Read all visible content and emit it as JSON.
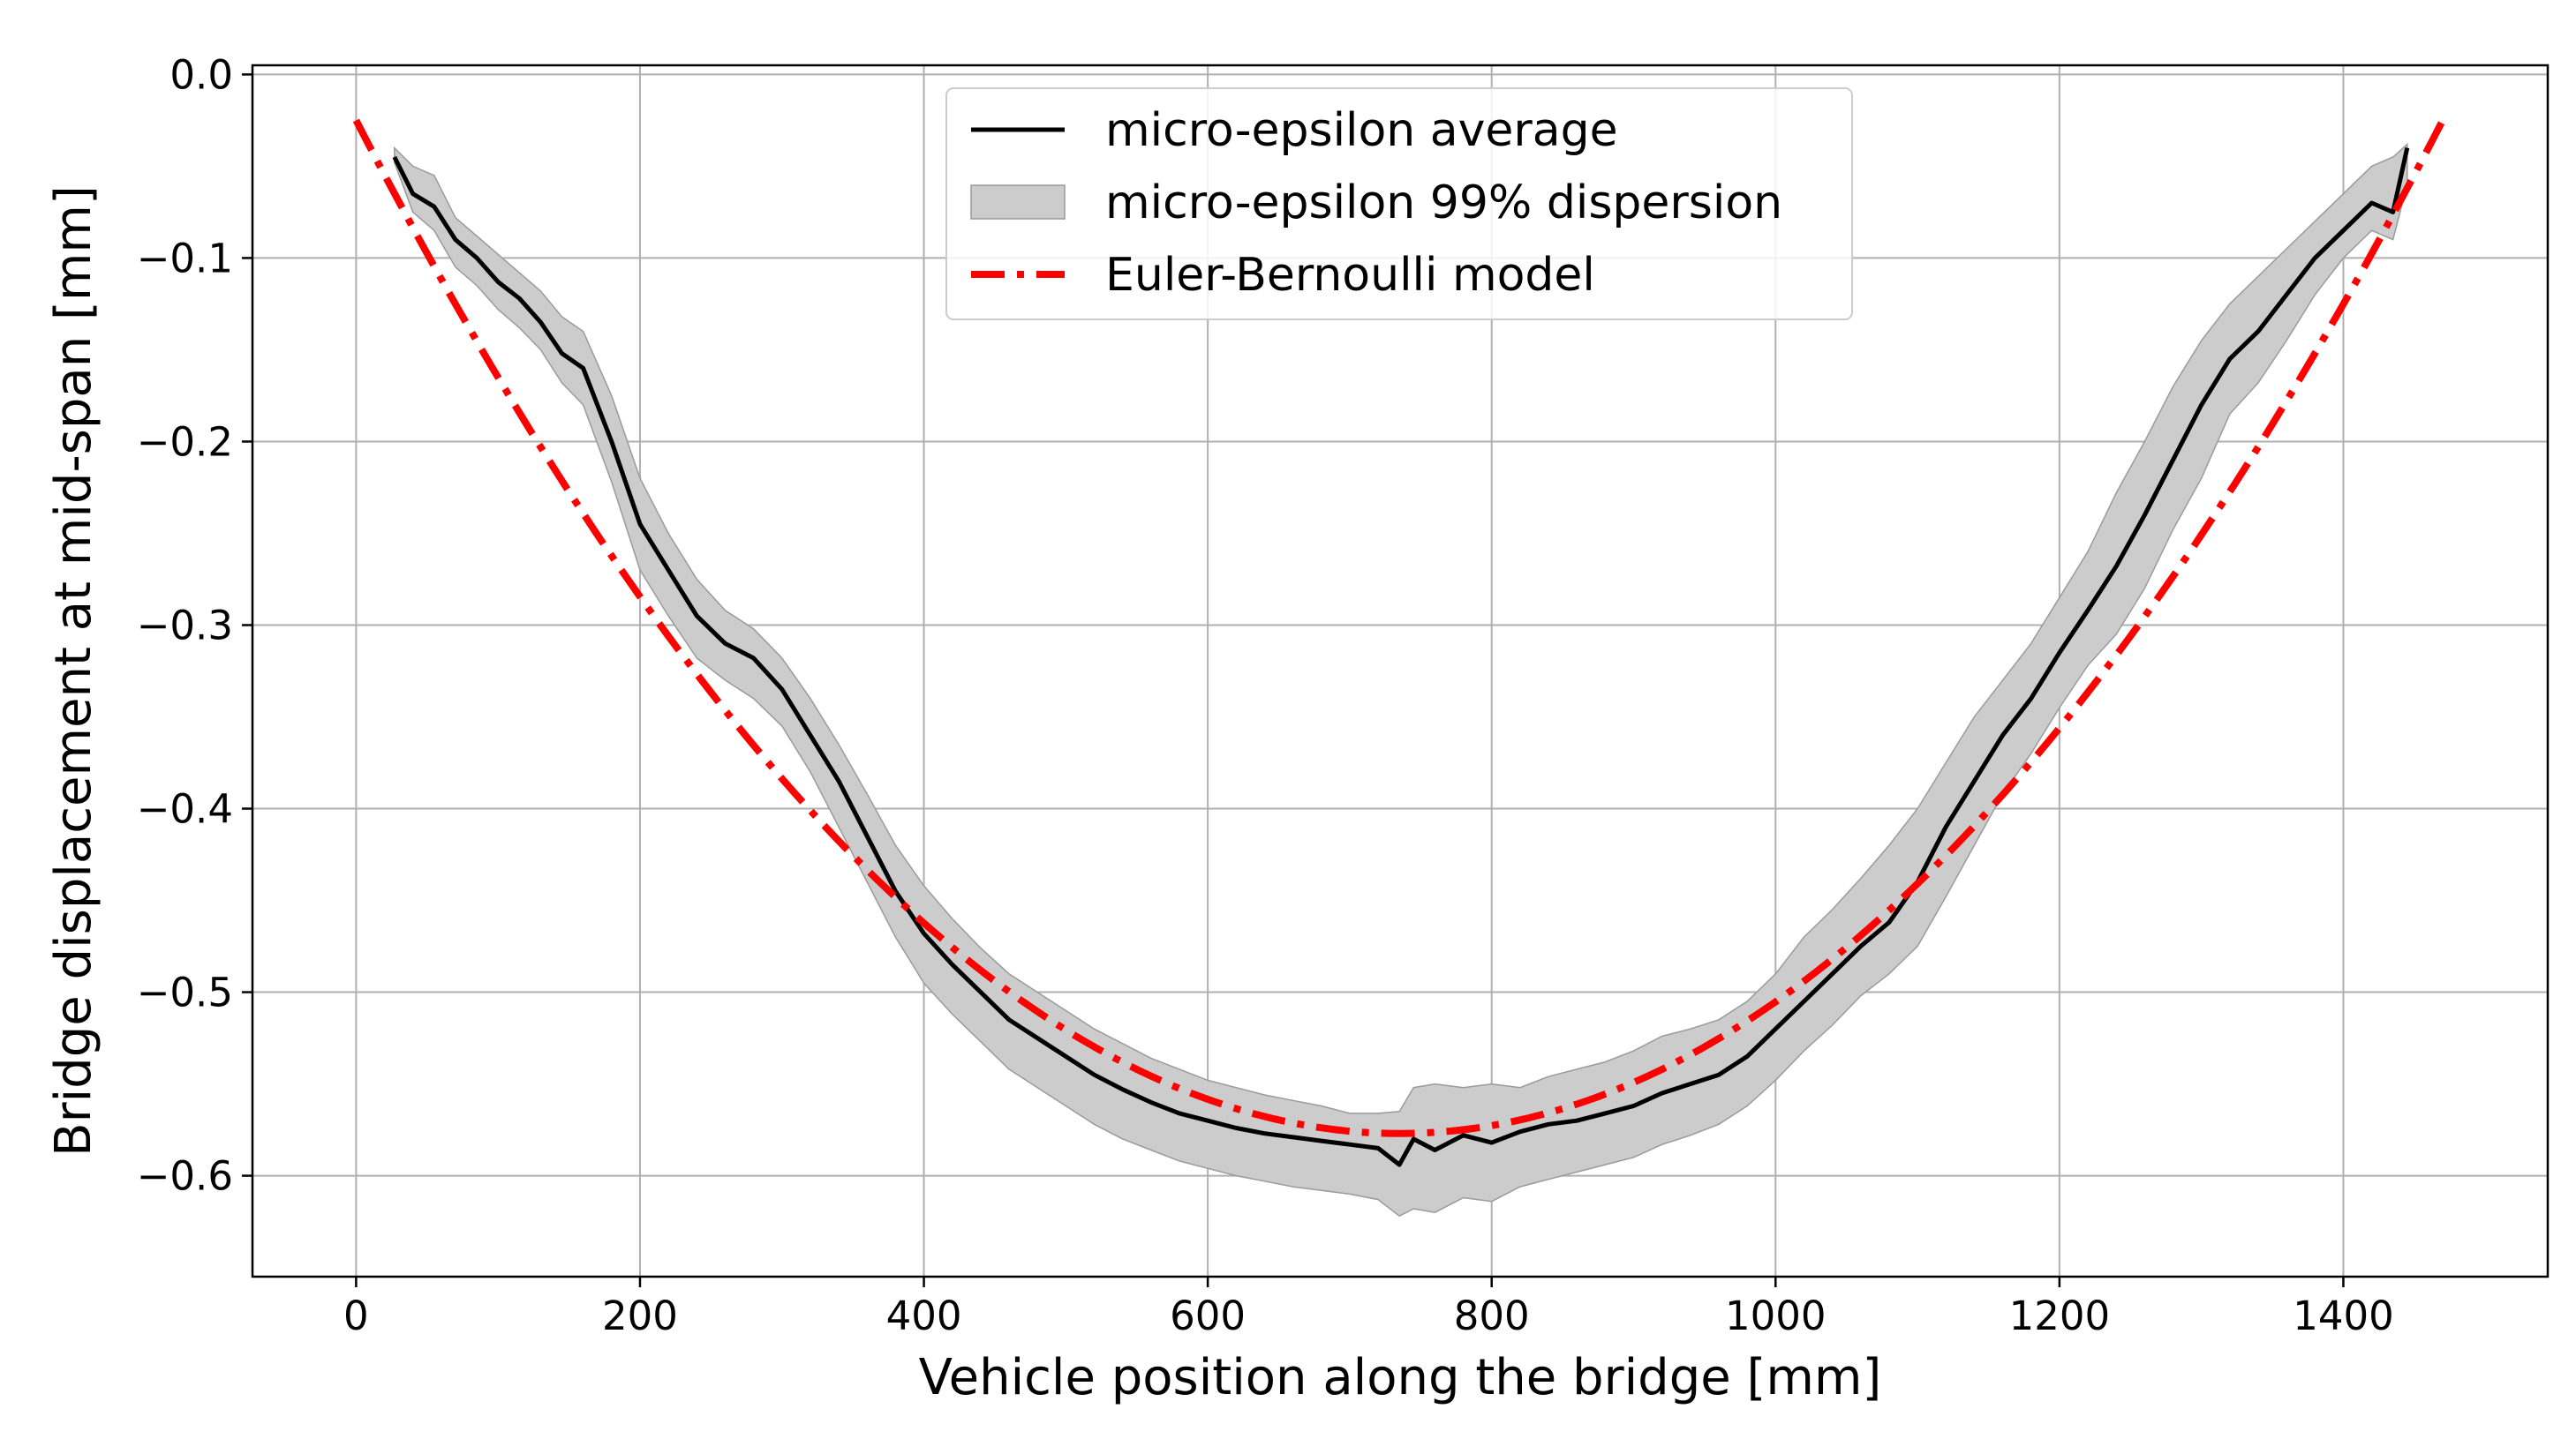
{
  "chart_data": {
    "type": "line",
    "title": "",
    "xlabel": "Vehicle position along the bridge [mm]",
    "ylabel": "Bridge displacement at mid-span [mm]",
    "xlim": [
      -73,
      1544
    ],
    "ylim": [
      -0.655,
      0.005
    ],
    "grid": true,
    "legend_position": "top-center",
    "x_ticks": [
      {
        "value": 0,
        "label": "0"
      },
      {
        "value": 200,
        "label": "200"
      },
      {
        "value": 400,
        "label": "400"
      },
      {
        "value": 600,
        "label": "600"
      },
      {
        "value": 800,
        "label": "800"
      },
      {
        "value": 1000,
        "label": "1000"
      },
      {
        "value": 1200,
        "label": "1200"
      },
      {
        "value": 1400,
        "label": "1400"
      }
    ],
    "y_ticks": [
      {
        "value": 0.0,
        "label": "0.0"
      },
      {
        "value": -0.1,
        "label": "−0.1"
      },
      {
        "value": -0.2,
        "label": "−0.2"
      },
      {
        "value": -0.3,
        "label": "−0.3"
      },
      {
        "value": -0.4,
        "label": "−0.4"
      },
      {
        "value": -0.5,
        "label": "−0.5"
      },
      {
        "value": -0.6,
        "label": "−0.6"
      }
    ],
    "series": [
      {
        "name": "micro-epsilon average",
        "style": "solid",
        "color": "#000000",
        "x": [
          27,
          40,
          55,
          70,
          85,
          100,
          115,
          130,
          145,
          160,
          180,
          200,
          220,
          240,
          260,
          280,
          300,
          320,
          340,
          360,
          380,
          400,
          420,
          440,
          460,
          480,
          500,
          520,
          540,
          560,
          580,
          600,
          620,
          640,
          660,
          680,
          700,
          720,
          735,
          745,
          760,
          780,
          800,
          820,
          840,
          860,
          880,
          900,
          920,
          940,
          960,
          980,
          1000,
          1020,
          1040,
          1060,
          1080,
          1100,
          1120,
          1140,
          1160,
          1180,
          1200,
          1220,
          1240,
          1260,
          1280,
          1300,
          1320,
          1340,
          1360,
          1380,
          1400,
          1420,
          1435,
          1445
        ],
        "y": [
          -0.045,
          -0.065,
          -0.072,
          -0.09,
          -0.1,
          -0.113,
          -0.122,
          -0.135,
          -0.152,
          -0.16,
          -0.2,
          -0.245,
          -0.27,
          -0.295,
          -0.31,
          -0.318,
          -0.335,
          -0.36,
          -0.385,
          -0.415,
          -0.445,
          -0.468,
          -0.485,
          -0.5,
          -0.515,
          -0.525,
          -0.535,
          -0.545,
          -0.553,
          -0.56,
          -0.566,
          -0.57,
          -0.574,
          -0.577,
          -0.579,
          -0.581,
          -0.583,
          -0.585,
          -0.594,
          -0.58,
          -0.586,
          -0.578,
          -0.582,
          -0.576,
          -0.572,
          -0.57,
          -0.566,
          -0.562,
          -0.555,
          -0.55,
          -0.545,
          -0.535,
          -0.52,
          -0.505,
          -0.49,
          -0.475,
          -0.462,
          -0.44,
          -0.41,
          -0.385,
          -0.36,
          -0.34,
          -0.315,
          -0.292,
          -0.268,
          -0.24,
          -0.21,
          -0.18,
          -0.155,
          -0.14,
          -0.12,
          -0.1,
          -0.085,
          -0.07,
          -0.075,
          -0.04
        ]
      },
      {
        "name": "micro-epsilon 99% dispersion",
        "style": "band",
        "color": "#cccccc",
        "x": [
          27,
          40,
          55,
          70,
          85,
          100,
          115,
          130,
          145,
          160,
          180,
          200,
          220,
          240,
          260,
          280,
          300,
          320,
          340,
          360,
          380,
          400,
          420,
          440,
          460,
          480,
          500,
          520,
          540,
          560,
          580,
          600,
          620,
          640,
          660,
          680,
          700,
          720,
          735,
          745,
          760,
          780,
          800,
          820,
          840,
          860,
          880,
          900,
          920,
          940,
          960,
          980,
          1000,
          1020,
          1040,
          1060,
          1080,
          1100,
          1120,
          1140,
          1160,
          1180,
          1200,
          1220,
          1240,
          1260,
          1280,
          1300,
          1320,
          1340,
          1360,
          1380,
          1400,
          1420,
          1435,
          1445
        ],
        "upper": [
          -0.04,
          -0.05,
          -0.055,
          -0.078,
          -0.088,
          -0.098,
          -0.108,
          -0.118,
          -0.132,
          -0.14,
          -0.175,
          -0.22,
          -0.25,
          -0.275,
          -0.292,
          -0.302,
          -0.318,
          -0.34,
          -0.365,
          -0.392,
          -0.42,
          -0.442,
          -0.46,
          -0.476,
          -0.49,
          -0.5,
          -0.51,
          -0.52,
          -0.528,
          -0.536,
          -0.542,
          -0.548,
          -0.552,
          -0.556,
          -0.559,
          -0.562,
          -0.566,
          -0.566,
          -0.565,
          -0.552,
          -0.55,
          -0.552,
          -0.55,
          -0.552,
          -0.546,
          -0.542,
          -0.538,
          -0.532,
          -0.524,
          -0.52,
          -0.515,
          -0.505,
          -0.49,
          -0.47,
          -0.455,
          -0.438,
          -0.42,
          -0.4,
          -0.375,
          -0.35,
          -0.33,
          -0.31,
          -0.285,
          -0.26,
          -0.228,
          -0.2,
          -0.17,
          -0.145,
          -0.125,
          -0.11,
          -0.095,
          -0.08,
          -0.065,
          -0.05,
          -0.045,
          -0.038
        ],
        "lower": [
          -0.048,
          -0.075,
          -0.085,
          -0.105,
          -0.115,
          -0.128,
          -0.138,
          -0.15,
          -0.168,
          -0.18,
          -0.222,
          -0.27,
          -0.295,
          -0.318,
          -0.33,
          -0.34,
          -0.355,
          -0.38,
          -0.41,
          -0.44,
          -0.47,
          -0.495,
          -0.512,
          -0.527,
          -0.542,
          -0.552,
          -0.562,
          -0.572,
          -0.58,
          -0.586,
          -0.592,
          -0.596,
          -0.6,
          -0.603,
          -0.606,
          -0.608,
          -0.61,
          -0.613,
          -0.622,
          -0.618,
          -0.62,
          -0.612,
          -0.614,
          -0.606,
          -0.602,
          -0.598,
          -0.594,
          -0.59,
          -0.583,
          -0.578,
          -0.572,
          -0.562,
          -0.548,
          -0.532,
          -0.518,
          -0.502,
          -0.49,
          -0.475,
          -0.448,
          -0.42,
          -0.392,
          -0.37,
          -0.345,
          -0.322,
          -0.305,
          -0.28,
          -0.248,
          -0.22,
          -0.185,
          -0.168,
          -0.145,
          -0.12,
          -0.1,
          -0.085,
          -0.09,
          -0.06
        ]
      },
      {
        "name": "Euler-Bernoulli model",
        "style": "dashdot",
        "color": "#ff0000",
        "x_start": 0,
        "x_end": 1470,
        "y_at_ends": -0.025,
        "y_min": -0.577,
        "x_at_min": 735
      }
    ]
  }
}
